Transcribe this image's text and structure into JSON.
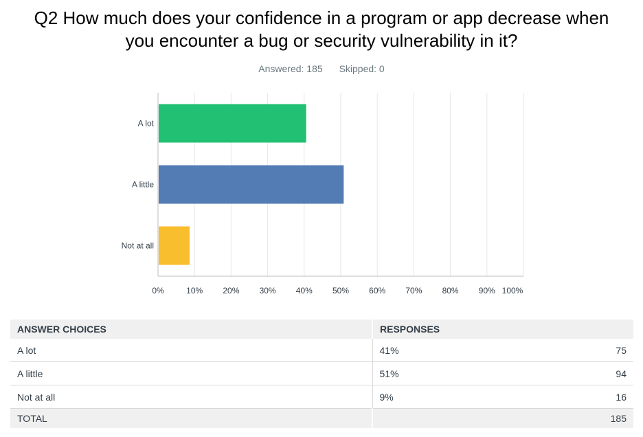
{
  "question": {
    "title_line1": "Q2 How much does your confidence in a program or app decrease when",
    "title_line2": "you encounter a bug or security vulnerability in it?",
    "answered": "Answered: 185",
    "skipped": "Skipped: 0"
  },
  "chart_data": {
    "type": "bar",
    "orientation": "horizontal",
    "categories": [
      "A lot",
      "A little",
      "Not at all"
    ],
    "values": [
      40.54,
      50.81,
      8.65
    ],
    "colors": [
      "#21c073",
      "#537bb4",
      "#f9be2e"
    ],
    "xlim": [
      0,
      100
    ],
    "x_ticks": [
      "0%",
      "10%",
      "20%",
      "30%",
      "40%",
      "50%",
      "60%",
      "70%",
      "80%",
      "90%",
      "100%"
    ],
    "grid": true
  },
  "table": {
    "headers": [
      "ANSWER CHOICES",
      "RESPONSES"
    ],
    "rows": [
      {
        "choice": "A lot",
        "percent": "41%",
        "count": "75"
      },
      {
        "choice": "A little",
        "percent": "51%",
        "count": "94"
      },
      {
        "choice": "Not at all",
        "percent": "9%",
        "count": "16"
      }
    ],
    "total_label": "TOTAL",
    "total_count": "185"
  }
}
